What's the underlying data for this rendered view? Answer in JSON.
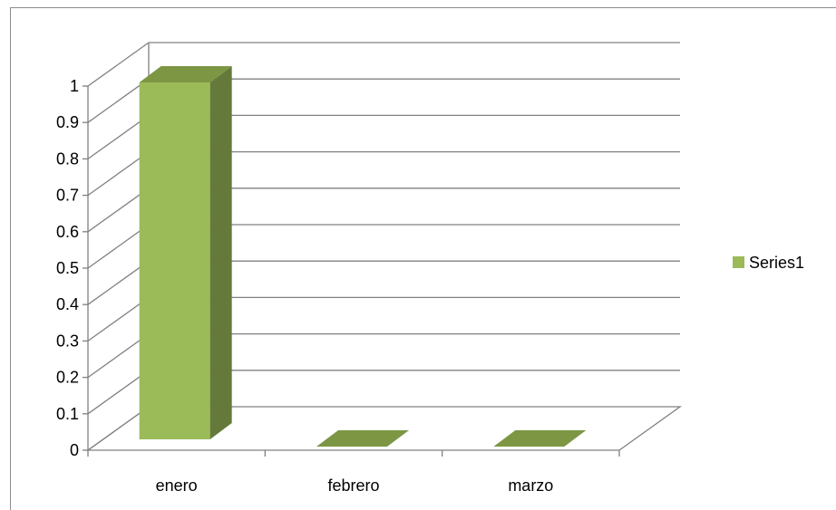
{
  "chart_data": {
    "type": "bar",
    "style": "3d-column",
    "categories": [
      "enero",
      "febrero",
      "marzo"
    ],
    "series": [
      {
        "name": "Series1",
        "values": [
          1,
          0,
          0
        ]
      }
    ],
    "title": "",
    "xlabel": "",
    "ylabel": "",
    "ylim": [
      0,
      1
    ],
    "yticks": [
      "0",
      "0.1",
      "0.2",
      "0.3",
      "0.4",
      "0.5",
      "0.6",
      "0.7",
      "0.8",
      "0.9",
      "1"
    ],
    "grid": true,
    "legend": "right"
  },
  "colors": {
    "bar_front": "#9bbb59",
    "bar_side": "#657a3a",
    "bar_top": "#7c9644",
    "grid": "#808080",
    "frame": "#8c8c8c"
  }
}
